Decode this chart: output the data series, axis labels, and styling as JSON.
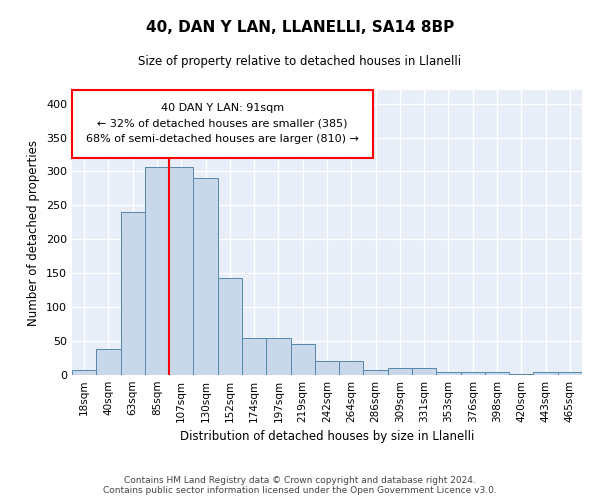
{
  "title1": "40, DAN Y LAN, LLANELLI, SA14 8BP",
  "title2": "Size of property relative to detached houses in Llanelli",
  "xlabel": "Distribution of detached houses by size in Llanelli",
  "ylabel": "Number of detached properties",
  "categories": [
    "18sqm",
    "40sqm",
    "63sqm",
    "85sqm",
    "107sqm",
    "130sqm",
    "152sqm",
    "174sqm",
    "197sqm",
    "219sqm",
    "242sqm",
    "264sqm",
    "286sqm",
    "309sqm",
    "331sqm",
    "353sqm",
    "376sqm",
    "398sqm",
    "420sqm",
    "443sqm",
    "465sqm"
  ],
  "values": [
    7,
    38,
    240,
    307,
    307,
    290,
    143,
    55,
    55,
    45,
    20,
    20,
    8,
    10,
    10,
    5,
    4,
    4,
    1,
    4,
    4
  ],
  "bar_color": "#c8d8ea",
  "bar_edge_color": "#5588aa",
  "red_line_x": 3.5,
  "annotation_text_line1": "40 DAN Y LAN: 91sqm",
  "annotation_text_line2": "← 32% of detached houses are smaller (385)",
  "annotation_text_line3": "68% of semi-detached houses are larger (810) →",
  "footer1": "Contains HM Land Registry data © Crown copyright and database right 2024.",
  "footer2": "Contains public sector information licensed under the Open Government Licence v3.0.",
  "ylim": [
    0,
    420
  ],
  "yticks": [
    0,
    50,
    100,
    150,
    200,
    250,
    300,
    350,
    400
  ],
  "background_color": "#e8eef8"
}
